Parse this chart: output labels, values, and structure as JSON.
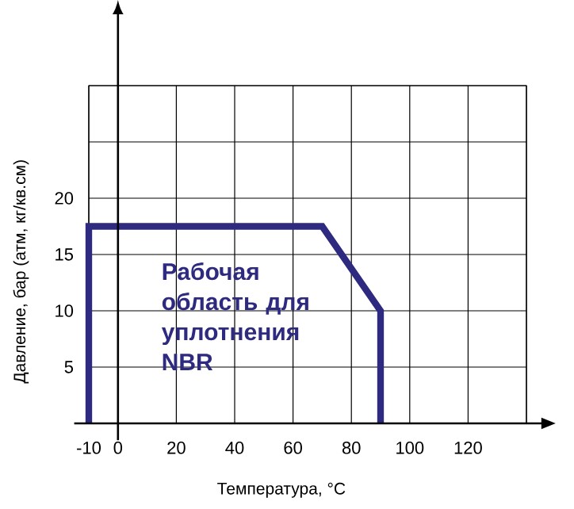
{
  "chart_data": {
    "type": "line",
    "xlabel": "Температура, °C",
    "ylabel": "Давление, бар (атм, кг/кв.см)",
    "annotations": [
      "Рабочая область для уплотнения NBR"
    ],
    "series": [
      {
        "color": "#2e2a80",
        "x": [
          -10,
          -10,
          70,
          90,
          90
        ],
        "values": [
          0,
          17.5,
          17.5,
          10,
          0
        ]
      }
    ],
    "xlim": [
      -10,
      140
    ],
    "ylim": [
      0,
      30
    ],
    "xticks": [
      -10,
      0,
      20,
      40,
      60,
      80,
      100,
      120,
      {
        "value": 140,
        "label": null
      }
    ],
    "yticks": [
      {
        "value": 0,
        "label": null
      },
      5,
      10,
      15,
      20,
      {
        "value": 25,
        "label": null
      },
      {
        "value": 30,
        "label": null
      }
    ],
    "grid": true,
    "marker": "none",
    "line_style": "solid"
  }
}
